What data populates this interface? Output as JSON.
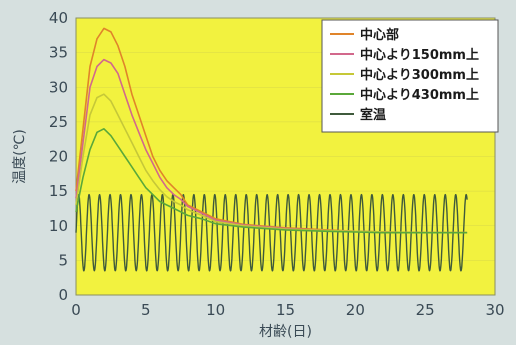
{
  "chart_data": {
    "type": "line",
    "xlabel": "材齢(日)",
    "ylabel": "温度(℃)",
    "xlim": [
      0,
      30
    ],
    "ylim": [
      0,
      40
    ],
    "xticks": [
      0,
      5,
      10,
      15,
      20,
      25,
      30
    ],
    "yticks": [
      0,
      5,
      10,
      15,
      20,
      25,
      30,
      35,
      40
    ],
    "legend_position": "top-right",
    "plot_background": "#f2f23f",
    "series": [
      {
        "name": "中心部",
        "color": "#e0842a",
        "x": [
          0,
          0.5,
          1,
          1.5,
          2,
          2.5,
          3,
          3.5,
          4,
          4.5,
          5,
          5.5,
          6,
          6.5,
          7,
          7.5,
          8,
          9,
          10,
          12,
          15,
          18,
          20,
          22,
          25,
          28
        ],
        "y": [
          15,
          24,
          33,
          37,
          38.5,
          38,
          36,
          33,
          29,
          26,
          23,
          20,
          18,
          16.5,
          15.5,
          14.5,
          13,
          12,
          11,
          10.2,
          9.7,
          9.4,
          9.2,
          9.1,
          9.0,
          9.0
        ]
      },
      {
        "name": "中心より150mm上",
        "color": "#d2688c",
        "x": [
          0,
          0.5,
          1,
          1.5,
          2,
          2.5,
          3,
          3.5,
          4,
          4.5,
          5,
          5.5,
          6,
          6.5,
          7,
          7.5,
          8,
          9,
          10,
          12,
          15,
          18,
          20,
          22,
          25,
          28
        ],
        "y": [
          14,
          22,
          30,
          33,
          34,
          33.5,
          32,
          29,
          26,
          23.5,
          21,
          19,
          17,
          15.5,
          14.5,
          13.8,
          12.8,
          11.8,
          10.8,
          10.1,
          9.6,
          9.3,
          9.2,
          9.1,
          9.0,
          9.0
        ]
      },
      {
        "name": "中心より300mm上",
        "color": "#c6c838",
        "x": [
          0,
          0.5,
          1,
          1.5,
          2,
          2.5,
          3,
          3.5,
          4,
          4.5,
          5,
          5.5,
          6,
          6.5,
          7,
          7.5,
          8,
          9,
          10,
          12,
          15,
          18,
          20,
          22,
          25,
          28
        ],
        "y": [
          13,
          20,
          26,
          28.5,
          29,
          28,
          26,
          24,
          22,
          20,
          18,
          16.5,
          15.2,
          14.2,
          13.5,
          13,
          12.3,
          11.5,
          10.6,
          10,
          9.5,
          9.3,
          9.2,
          9.1,
          9.0,
          9.0
        ]
      },
      {
        "name": "中心より430mm上",
        "color": "#5aa83a",
        "x": [
          0,
          0.5,
          1,
          1.5,
          2,
          2.5,
          3,
          3.5,
          4,
          4.5,
          5,
          5.5,
          6,
          6.5,
          7,
          7.5,
          8,
          9,
          10,
          12,
          15,
          18,
          20,
          22,
          25,
          28
        ],
        "y": [
          12,
          17,
          21,
          23.5,
          24,
          23,
          21.5,
          20,
          18.5,
          17,
          15.5,
          14.5,
          13.5,
          13,
          12.5,
          12,
          11.5,
          11,
          10.3,
          9.8,
          9.4,
          9.2,
          9.1,
          9.0,
          9.0,
          9.0
        ]
      },
      {
        "name": "室温",
        "color": "#3f5a3c",
        "oscillation": {
          "days": [
            0,
            28
          ],
          "period_days": 0.75,
          "min": 3.5,
          "max": 14.5,
          "mean": 9
        }
      }
    ]
  }
}
